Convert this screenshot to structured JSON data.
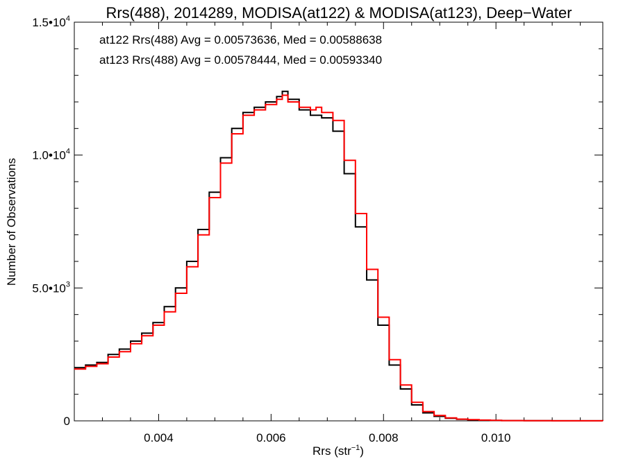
{
  "title": "Rrs(488), 2014289, MODISA(at122) & MODISA(at123), Deep−Water",
  "stats": {
    "at122": "at122 Rrs(488) Avg = 0.00573636, Med = 0.00588638",
    "at123": "at123 Rrs(488) Avg = 0.00578444, Med = 0.00593340"
  },
  "colors": {
    "at122": "#000000",
    "at123": "#ff0000"
  },
  "axes": {
    "xlabel": "Rrs (str",
    "xlabel_sup": "−1",
    "xlabel_end": ")",
    "ylabel": "Number of Observations",
    "x_ticks": [
      {
        "value": 0.004,
        "label": "0.004"
      },
      {
        "value": 0.006,
        "label": "0.006"
      },
      {
        "value": 0.008,
        "label": "0.008"
      },
      {
        "value": 0.01,
        "label": "0.010"
      }
    ],
    "y_ticks": [
      {
        "value": 0,
        "label": "0",
        "sup": ""
      },
      {
        "value": 5000,
        "label": "5.0•10",
        "sup": "3"
      },
      {
        "value": 10000,
        "label": "1.0•10",
        "sup": "4"
      },
      {
        "value": 15000,
        "label": "1.5•10",
        "sup": "4"
      }
    ]
  },
  "chart_data": {
    "type": "line",
    "title": "Rrs(488), 2014289, MODISA(at122) & MODISA(at123), Deep−Water",
    "xlabel": "Rrs (str⁻¹)",
    "ylabel": "Number of Observations",
    "xlim": [
      0.0025,
      0.0119
    ],
    "ylim": [
      0,
      15000
    ],
    "grid": false,
    "x": [
      0.0025,
      0.0027,
      0.0029,
      0.0031,
      0.0033,
      0.0035,
      0.0037,
      0.0039,
      0.0041,
      0.0043,
      0.0045,
      0.0047,
      0.0049,
      0.0051,
      0.0053,
      0.0055,
      0.0057,
      0.0059,
      0.0061,
      0.0062,
      0.0063,
      0.0065,
      0.0067,
      0.0068,
      0.0069,
      0.0071,
      0.0073,
      0.0075,
      0.0077,
      0.0079,
      0.0081,
      0.0083,
      0.0085,
      0.0087,
      0.0089,
      0.0091,
      0.0093,
      0.0095,
      0.0097,
      0.0099,
      0.0101,
      0.0105,
      0.011,
      0.0115,
      0.0119
    ],
    "series": [
      {
        "name": "at122",
        "values": [
          2000,
          2100,
          2200,
          2500,
          2700,
          3000,
          3300,
          3700,
          4300,
          5000,
          6000,
          7200,
          8600,
          9900,
          11000,
          11600,
          11800,
          12000,
          12200,
          12400,
          12100,
          11700,
          11500,
          11500,
          11400,
          10900,
          9300,
          7300,
          5300,
          3600,
          2100,
          1200,
          600,
          300,
          170,
          100,
          60,
          40,
          25,
          15,
          10,
          5,
          3,
          2,
          1
        ]
      },
      {
        "name": "at123",
        "values": [
          1950,
          2050,
          2150,
          2400,
          2600,
          2900,
          3200,
          3600,
          4100,
          4800,
          5800,
          7000,
          8400,
          9700,
          10800,
          11500,
          11700,
          11900,
          12100,
          12250,
          12000,
          11800,
          11700,
          11800,
          11600,
          11300,
          9800,
          7800,
          5700,
          3900,
          2300,
          1350,
          700,
          350,
          200,
          110,
          65,
          45,
          28,
          17,
          11,
          6,
          3,
          2,
          1
        ]
      }
    ]
  }
}
